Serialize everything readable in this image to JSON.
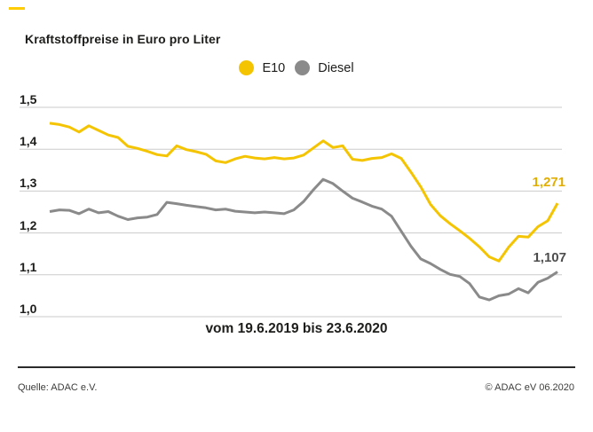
{
  "page": {
    "title": "Kraftstoffpreise in Euro pro Liter",
    "brand_color": "#FFCC00"
  },
  "legend": {
    "items": [
      {
        "label": "E10",
        "color": "#F5C400"
      },
      {
        "label": "Diesel",
        "color": "#8A8A8A"
      }
    ]
  },
  "footer": {
    "source": "Quelle: ADAC e.V.",
    "copyright": "© ADAC eV 06.2020"
  },
  "chart_data": {
    "type": "line",
    "title": "Kraftstoffpreise in Euro pro Liter",
    "xlabel": "vom 19.6.2019 bis 23.6.2020",
    "ylabel": "Euro pro Liter",
    "x_note": "53 weekly values from 19.6.2019 to 23.6.2020",
    "ylim": [
      1.0,
      1.5
    ],
    "yticks": [
      1.5,
      1.4,
      1.3,
      1.2,
      1.1,
      1.0
    ],
    "ytick_labels": [
      "1,5",
      "1,4",
      "1,3",
      "1,2",
      "1,1",
      "1,0"
    ],
    "grid": true,
    "grid_color": "#CBCBCB",
    "legend_position": "top-center",
    "series": [
      {
        "name": "E10",
        "color": "#F5C400",
        "label_color": "#E2AE00",
        "end_label": "1,271",
        "final_value": 1.271,
        "values": [
          1.462,
          1.459,
          1.453,
          1.441,
          1.456,
          1.445,
          1.434,
          1.428,
          1.407,
          1.402,
          1.395,
          1.387,
          1.384,
          1.408,
          1.399,
          1.394,
          1.388,
          1.372,
          1.368,
          1.377,
          1.383,
          1.379,
          1.377,
          1.38,
          1.377,
          1.379,
          1.386,
          1.403,
          1.42,
          1.404,
          1.408,
          1.376,
          1.373,
          1.378,
          1.38,
          1.389,
          1.378,
          1.345,
          1.31,
          1.268,
          1.241,
          1.222,
          1.205,
          1.187,
          1.167,
          1.143,
          1.133,
          1.166,
          1.192,
          1.19,
          1.215,
          1.229,
          1.271
        ]
      },
      {
        "name": "Diesel",
        "color": "#8A8A8A",
        "label_color": "#4D4D4D",
        "end_label": "1,107",
        "final_value": 1.107,
        "values": [
          1.251,
          1.255,
          1.254,
          1.246,
          1.257,
          1.248,
          1.251,
          1.24,
          1.232,
          1.236,
          1.238,
          1.244,
          1.273,
          1.27,
          1.266,
          1.263,
          1.26,
          1.255,
          1.257,
          1.252,
          1.25,
          1.248,
          1.25,
          1.248,
          1.246,
          1.255,
          1.275,
          1.303,
          1.328,
          1.318,
          1.3,
          1.283,
          1.274,
          1.264,
          1.257,
          1.24,
          1.204,
          1.168,
          1.138,
          1.127,
          1.113,
          1.101,
          1.096,
          1.079,
          1.047,
          1.04,
          1.05,
          1.054,
          1.067,
          1.057,
          1.082,
          1.092,
          1.107
        ]
      }
    ]
  }
}
